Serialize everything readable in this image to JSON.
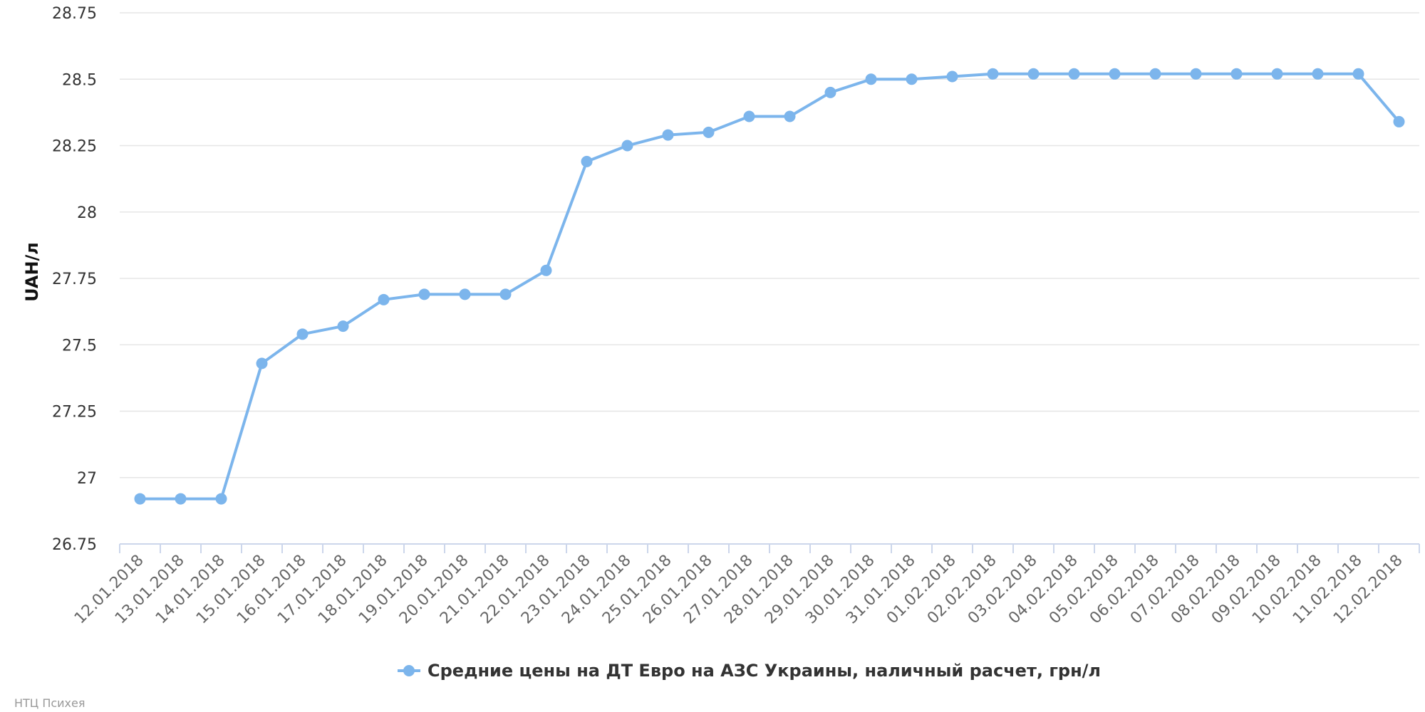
{
  "chart_data": {
    "type": "line",
    "title": "",
    "xlabel": "",
    "ylabel": "UAH/л",
    "ylim": [
      26.75,
      28.75
    ],
    "yticks": [
      26.75,
      27,
      27.25,
      27.5,
      27.75,
      28,
      28.25,
      28.5,
      28.75
    ],
    "ytick_labels": [
      "26.75",
      "27",
      "27.25",
      "27.5",
      "27.75",
      "28",
      "28.25",
      "28.5",
      "28.75"
    ],
    "grid": true,
    "legend_position": "bottom-center",
    "categories": [
      "12.01.2018",
      "13.01.2018",
      "14.01.2018",
      "15.01.2018",
      "16.01.2018",
      "17.01.2018",
      "18.01.2018",
      "19.01.2018",
      "20.01.2018",
      "21.01.2018",
      "22.01.2018",
      "23.01.2018",
      "24.01.2018",
      "25.01.2018",
      "26.01.2018",
      "27.01.2018",
      "28.01.2018",
      "29.01.2018",
      "30.01.2018",
      "31.01.2018",
      "01.02.2018",
      "02.02.2018",
      "03.02.2018",
      "04.02.2018",
      "05.02.2018",
      "06.02.2018",
      "07.02.2018",
      "08.02.2018",
      "09.02.2018",
      "10.02.2018",
      "11.02.2018",
      "12.02.2018"
    ],
    "series": [
      {
        "name": "Средние цены на ДТ Евро на АЗС Украины, наличный расчет, грн/л",
        "color": "#7cb5ec",
        "values": [
          26.92,
          26.92,
          26.92,
          27.43,
          27.54,
          27.57,
          27.67,
          27.69,
          27.69,
          27.69,
          27.78,
          28.19,
          28.25,
          28.29,
          28.3,
          28.36,
          28.36,
          28.45,
          28.5,
          28.5,
          28.51,
          28.52,
          28.52,
          28.52,
          28.52,
          28.52,
          28.52,
          28.52,
          28.52,
          28.52,
          28.52,
          28.34
        ]
      }
    ]
  },
  "credits": "НТЦ Психея",
  "colors": {
    "grid": "#e6e6e6",
    "axis": "#ccd6eb",
    "series": "#7cb5ec"
  }
}
